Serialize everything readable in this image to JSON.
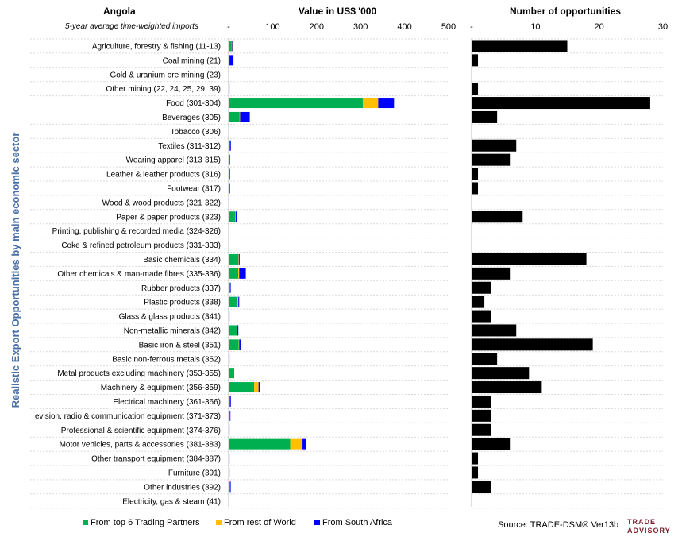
{
  "chart_data": {
    "type": "bar",
    "orientation": "horizontal",
    "country": "Angola",
    "subtitle": "5-year average time-weighted imports",
    "ylabel": "Realistic Export Opportunities by main economic sector",
    "categories": [
      "Agriculture, forestry & fishing (11-13)",
      "Coal mining (21)",
      "Gold & uranium ore mining (23)",
      "Other mining (22, 24, 25, 29, 39)",
      "Food (301-304)",
      "Beverages (305)",
      "Tobacco (306)",
      "Textiles (311-312)",
      "Wearing apparel (313-315)",
      "Leather & leather products (316)",
      "Footwear (317)",
      "Wood & wood products (321-322)",
      "Paper & paper products (323)",
      "Printing, publishing & recorded media (324-326)",
      "Coke & refined petroleum products (331-333)",
      "Basic chemicals (334)",
      "Other chemicals & man-made fibres (335-336)",
      "Rubber products (337)",
      "Plastic products (338)",
      "Glass & glass products (341)",
      "Non-metallic minerals (342)",
      "Basic iron & steel (351)",
      "Basic non-ferrous metals (352)",
      "Metal products excluding machinery (353-355)",
      "Machinery & equipment (356-359)",
      "Electrical machinery (361-366)",
      "evision, radio & communication equipment (371-373)",
      "Professional & scientific equipment (374-376)",
      "Motor vehicles, parts & accessories (381-383)",
      "Other transport equipment (384-387)",
      "Furniture (391)",
      "Other industries (392)",
      "Electricity, gas & steam (41)"
    ],
    "value_chart": {
      "title": "Value in US$ '000",
      "xlim": [
        0,
        500
      ],
      "ticks": [
        "-",
        "100",
        "200",
        "300",
        "400",
        "500"
      ],
      "series": [
        {
          "name": "From top 6 Trading Partners",
          "color": "#00b050",
          "values": [
            7,
            2,
            0,
            0,
            305,
            25,
            0,
            3,
            1,
            1,
            1,
            0,
            15,
            0,
            0,
            22,
            22,
            4,
            20,
            1,
            18,
            23,
            1,
            9,
            58,
            3,
            3,
            1,
            140,
            1,
            1,
            4,
            0
          ]
        },
        {
          "name": "From rest of World",
          "color": "#ffc000",
          "values": [
            1,
            0,
            0,
            0,
            35,
            1,
            0,
            0,
            0,
            0,
            0,
            0,
            1,
            0,
            0,
            1,
            2,
            0,
            2,
            0,
            1,
            1,
            0,
            1,
            10,
            0,
            0,
            0,
            28,
            0,
            0,
            0,
            0
          ]
        },
        {
          "name": "From South Africa",
          "color": "#0000ff",
          "values": [
            2,
            9,
            0,
            2,
            36,
            22,
            0,
            2,
            2,
            2,
            2,
            0,
            3,
            0,
            0,
            2,
            15,
            1,
            2,
            1,
            3,
            3,
            1,
            2,
            4,
            2,
            1,
            1,
            8,
            1,
            1,
            1,
            0
          ]
        }
      ]
    },
    "count_chart": {
      "title": "Number of opportunities",
      "xlim": [
        0,
        30
      ],
      "ticks": [
        "-",
        "10",
        "20",
        "30"
      ],
      "values": [
        15,
        1,
        0,
        1,
        28,
        4,
        0,
        7,
        6,
        1,
        1,
        0,
        8,
        0,
        0,
        18,
        6,
        3,
        2,
        3,
        7,
        19,
        4,
        9,
        11,
        3,
        3,
        3,
        6,
        1,
        1,
        3,
        0
      ],
      "color": "#000000"
    },
    "legend": [
      {
        "label": "From top 6 Trading Partners",
        "color": "#00b050"
      },
      {
        "label": "From rest of World",
        "color": "#ffc000"
      },
      {
        "label": "From South Africa",
        "color": "#0000ff"
      }
    ],
    "legend_position": "bottom",
    "source": "Source: TRADE-DSM®  Ver13b",
    "logo": [
      "TRADE",
      "ADVISORY"
    ]
  }
}
